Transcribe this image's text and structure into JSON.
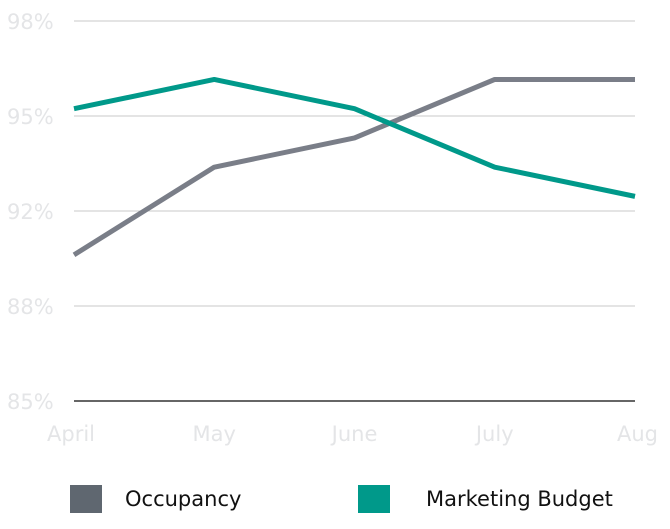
{
  "chart_data": {
    "type": "line",
    "title": "",
    "xlabel": "",
    "ylabel": "",
    "categories": [
      "April",
      "May",
      "June",
      "July",
      "Aug"
    ],
    "y_ticks": [
      {
        "value": 98,
        "label": "98%"
      },
      {
        "value": 94.75,
        "label": "95%"
      },
      {
        "value": 91.5,
        "label": "92%"
      },
      {
        "value": 88.25,
        "label": "88%"
      },
      {
        "value": 85,
        "label": "85%"
      }
    ],
    "ylim": [
      85,
      98
    ],
    "grid": true,
    "legend_position": "bottom",
    "series": [
      {
        "name": "Occupancy",
        "color": "#7a7e88",
        "swatch_color": "#5f6770",
        "values": [
          90.0,
          93.0,
          94.0,
          96.0,
          96.0
        ]
      },
      {
        "name": "Marketing Budget",
        "color": "#00998a",
        "swatch_color": "#00998a",
        "values": [
          95.0,
          96.0,
          95.0,
          93.0,
          92.0
        ]
      }
    ]
  }
}
